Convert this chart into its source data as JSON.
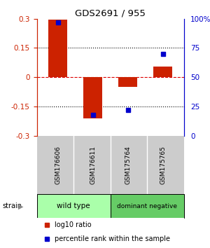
{
  "title": "GDS2691 / 955",
  "samples": [
    "GSM176606",
    "GSM176611",
    "GSM175764",
    "GSM175765"
  ],
  "log10_ratio": [
    0.295,
    -0.21,
    -0.05,
    0.055
  ],
  "percentile_rank": [
    97,
    18,
    22,
    70
  ],
  "bar_color": "#cc2200",
  "dot_color": "#0000cc",
  "ylim_left": [
    -0.3,
    0.3
  ],
  "ylim_right": [
    0,
    100
  ],
  "yticks_left": [
    -0.3,
    -0.15,
    0,
    0.15,
    0.3
  ],
  "yticks_right": [
    0,
    25,
    50,
    75,
    100
  ],
  "ytick_labels_right": [
    "0",
    "25",
    "50",
    "75",
    "100%"
  ],
  "hline_dotted": [
    0.15,
    -0.15
  ],
  "hline_zero_color": "#dd0000",
  "groups": [
    {
      "label": "wild type",
      "samples": [
        0,
        1
      ],
      "color": "#aaffaa"
    },
    {
      "label": "dominant negative",
      "samples": [
        2,
        3
      ],
      "color": "#66cc66"
    }
  ],
  "strain_label": "strain",
  "legend_red_label": "log10 ratio",
  "legend_blue_label": "percentile rank within the sample",
  "bar_width": 0.55,
  "background_color": "#ffffff",
  "label_bg": "#cccccc"
}
